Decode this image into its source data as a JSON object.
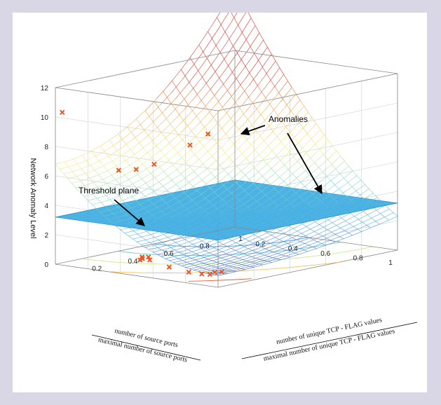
{
  "chart_data": {
    "type": "surface",
    "title": "",
    "zlabel": "Network Anomaly Level",
    "xlabels": [
      "number of source ports",
      "maximal number of source ports"
    ],
    "ylabels": [
      "number of unique TCP - FLAG values",
      "maximal number of unique TCP - FLAG values"
    ],
    "x_ticks": [
      "0.2",
      "0.4",
      "0.6",
      "0.8",
      "1"
    ],
    "y_ticks": [
      "0.2",
      "0.4",
      "0.6",
      "0.8",
      "1"
    ],
    "z_ticks": [
      "0",
      "2",
      "4",
      "6",
      "8",
      "10",
      "12"
    ],
    "xlim": [
      0,
      1
    ],
    "ylim": [
      0,
      1
    ],
    "zlim": [
      0,
      12
    ],
    "threshold": 3.2,
    "surface": "quadratic surface rising with both axes, coloured blue (low) to red (high)",
    "colors": {
      "threshold_plane": "#39a9e0",
      "low": "#2b3fb5",
      "high": "#d7261a",
      "points": "#ee5522"
    },
    "points": [
      {
        "x": 0.0,
        "y": 0.02,
        "z": 1.0
      },
      {
        "x": 0.02,
        "y": 0.0,
        "z": 1.0
      },
      {
        "x": 0.05,
        "y": 0.0,
        "z": 0.8
      },
      {
        "x": 0.1,
        "y": 0.0,
        "z": 0.75
      },
      {
        "x": 0.18,
        "y": 0.0,
        "z": 0.75
      },
      {
        "x": 0.3,
        "y": 0.0,
        "z": 0.9
      },
      {
        "x": 0.42,
        "y": 0.0,
        "z": 1.2
      },
      {
        "x": 0.45,
        "y": 0.02,
        "z": 1.3
      },
      {
        "x": 0.48,
        "y": 0.0,
        "z": 1.1
      },
      {
        "x": 0.5,
        "y": 0.03,
        "z": 1.2
      },
      {
        "x": 0.52,
        "y": 0.05,
        "z": 1.0
      },
      {
        "x": 0.92,
        "y": 0.28,
        "z": 5.8
      },
      {
        "x": 0.98,
        "y": 0.02,
        "z": 10.3
      },
      {
        "x": 1.0,
        "y": 0.45,
        "z": 5.3
      },
      {
        "x": 1.0,
        "y": 0.55,
        "z": 5.4
      },
      {
        "x": 1.0,
        "y": 0.75,
        "z": 6.2
      },
      {
        "x": 1.0,
        "y": 0.85,
        "z": 6.7
      }
    ],
    "annotations": [
      "Anomalies",
      "Threshold plane"
    ]
  }
}
